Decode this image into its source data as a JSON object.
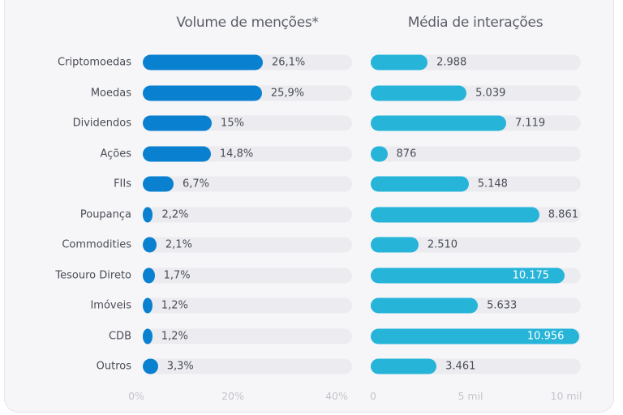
{
  "chart_data": [
    {
      "type": "bar",
      "orientation": "horizontal",
      "title": "Volume de menções*",
      "categories": [
        "Criptomoedas",
        "Moedas",
        "Dividendos",
        "Ações",
        "FIIs",
        "Poupança",
        "Commodities",
        "Tesouro Direto",
        "Imóveis",
        "CDB",
        "Outros"
      ],
      "values": [
        26.1,
        25.9,
        15,
        14.8,
        6.7,
        2.2,
        2.1,
        1.7,
        1.2,
        1.2,
        3.3
      ],
      "value_labels": [
        "26,1%",
        "25,9%",
        "15%",
        "14,8%",
        "6,7%",
        "2,2%",
        "2,1%",
        "1,7%",
        "1,2%",
        "1,2%",
        "3,3%"
      ],
      "xticks": [
        0,
        20,
        40
      ],
      "xtick_labels": [
        "0%",
        "20%",
        "40%"
      ],
      "xlim": [
        0,
        45
      ],
      "color": "#0a80d0"
    },
    {
      "type": "bar",
      "orientation": "horizontal",
      "title": "Média de interações",
      "categories": [
        "Criptomoedas",
        "Moedas",
        "Dividendos",
        "Ações",
        "FIIs",
        "Poupança",
        "Commodities",
        "Tesouro Direto",
        "Imóveis",
        "CDB",
        "Outros"
      ],
      "values": [
        2988,
        5039,
        7119,
        876,
        5148,
        8861,
        2510,
        10175,
        5633,
        10956,
        3461
      ],
      "value_labels": [
        "2.988",
        "5.039",
        "7.119",
        "876",
        "5.148",
        "8.861",
        "2.510",
        "10.175",
        "5.633",
        "10.956",
        "3.461"
      ],
      "xticks": [
        0,
        5000,
        10000
      ],
      "xtick_labels": [
        "0",
        "5 mil",
        "10 mil"
      ],
      "xlim": [
        0,
        11000
      ],
      "color": "#26b4d8"
    }
  ]
}
